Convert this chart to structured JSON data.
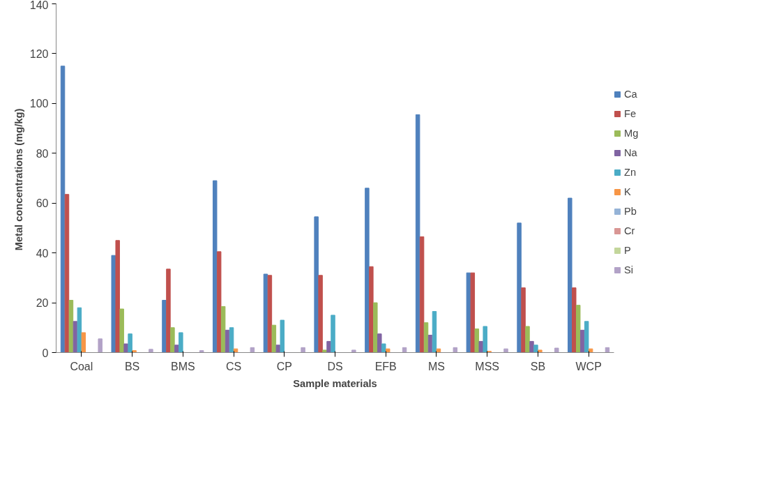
{
  "chart_data": {
    "type": "bar",
    "xlabel": "Sample materials",
    "ylabel": "Metal  concentrations (mg/kg)",
    "categories": [
      "Coal",
      "BS",
      "BMS",
      "CS",
      "CP",
      "DS",
      "EFB",
      "MS",
      "MSS",
      "SB",
      "WCP"
    ],
    "ylim": [
      0,
      140
    ],
    "yticks": [
      0,
      20,
      40,
      60,
      80,
      100,
      120,
      140
    ],
    "grid": false,
    "legend": "right",
    "series": [
      {
        "name": "Ca",
        "color": "#4f81bd",
        "values": [
          115,
          39,
          21,
          69,
          31.5,
          54.5,
          66,
          95.5,
          32,
          52,
          62
        ]
      },
      {
        "name": "Fe",
        "color": "#c0504d",
        "values": [
          63.5,
          45,
          33.5,
          40.5,
          31,
          31,
          34.5,
          46.5,
          32,
          26,
          26
        ]
      },
      {
        "name": "Mg",
        "color": "#9bbb59",
        "values": [
          21,
          17.5,
          10,
          18.5,
          11,
          1,
          20,
          12,
          9.5,
          10.5,
          19
        ]
      },
      {
        "name": "Na",
        "color": "#8064a2",
        "values": [
          12.5,
          3.5,
          3,
          9,
          3,
          4.5,
          7.5,
          7,
          4.5,
          4.5,
          9
        ]
      },
      {
        "name": "Zn",
        "color": "#4bacc6",
        "values": [
          18,
          7.5,
          8,
          10,
          13,
          15,
          3.5,
          16.5,
          10.5,
          3,
          12.5
        ]
      },
      {
        "name": "K",
        "color": "#f79646",
        "values": [
          8,
          0.8,
          null,
          1.5,
          null,
          null,
          1.5,
          1.5,
          0.5,
          1,
          1.5
        ]
      },
      {
        "name": "Pb",
        "color": "#95b3d7",
        "values": [
          null,
          null,
          null,
          null,
          null,
          null,
          null,
          null,
          null,
          null,
          null
        ]
      },
      {
        "name": "Cr",
        "color": "#d99694",
        "values": [
          null,
          null,
          null,
          null,
          null,
          null,
          null,
          null,
          null,
          null,
          null
        ]
      },
      {
        "name": "P",
        "color": "#c3d69b",
        "values": [
          null,
          null,
          null,
          null,
          null,
          null,
          null,
          null,
          null,
          null,
          null
        ]
      },
      {
        "name": "Si",
        "color": "#b2a2c7",
        "values": [
          5.5,
          1.3,
          0.8,
          2,
          2,
          1,
          2,
          2,
          1.5,
          1.8,
          2
        ]
      }
    ]
  }
}
